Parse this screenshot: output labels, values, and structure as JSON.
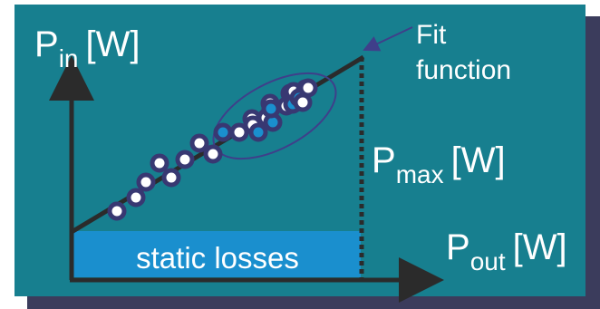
{
  "labels": {
    "p_in_main": "P",
    "p_in_sub": "in",
    "p_in_unit": "[W]",
    "p_out_main": "P",
    "p_out_sub": "out",
    "p_out_unit": "[W]",
    "p_max_main": "P",
    "p_max_sub": "max",
    "p_max_unit": "[W]",
    "fit_line1": "Fit",
    "fit_line2": "function",
    "static_losses": "static losses"
  },
  "colors": {
    "panel": "#177f8f",
    "shadow": "#3b3c5c",
    "static_band": "#1a8fce",
    "axis": "#2b2b2b",
    "point_ring": "#383872",
    "point_fill_white": "#ffffff",
    "point_fill_blue": "#1a8fce",
    "ellipse": "#3f3f8a",
    "text": "#ffffff"
  },
  "points": [
    {
      "fill": "white"
    },
    {
      "fill": "white"
    },
    {
      "fill": "white"
    },
    {
      "fill": "white"
    },
    {
      "fill": "white"
    },
    {
      "fill": "white"
    },
    {
      "fill": "white"
    },
    {
      "fill": "white"
    },
    {
      "fill": "blue"
    },
    {
      "fill": "white"
    },
    {
      "fill": "white"
    },
    {
      "fill": "white"
    },
    {
      "fill": "blue"
    },
    {
      "fill": "white"
    },
    {
      "fill": "blue"
    },
    {
      "fill": "white"
    },
    {
      "fill": "blue"
    },
    {
      "fill": "white"
    },
    {
      "fill": "white"
    },
    {
      "fill": "blue"
    },
    {
      "fill": "white"
    },
    {
      "fill": "white"
    },
    {
      "fill": "blue"
    },
    {
      "fill": "white"
    },
    {
      "fill": "white"
    }
  ]
}
